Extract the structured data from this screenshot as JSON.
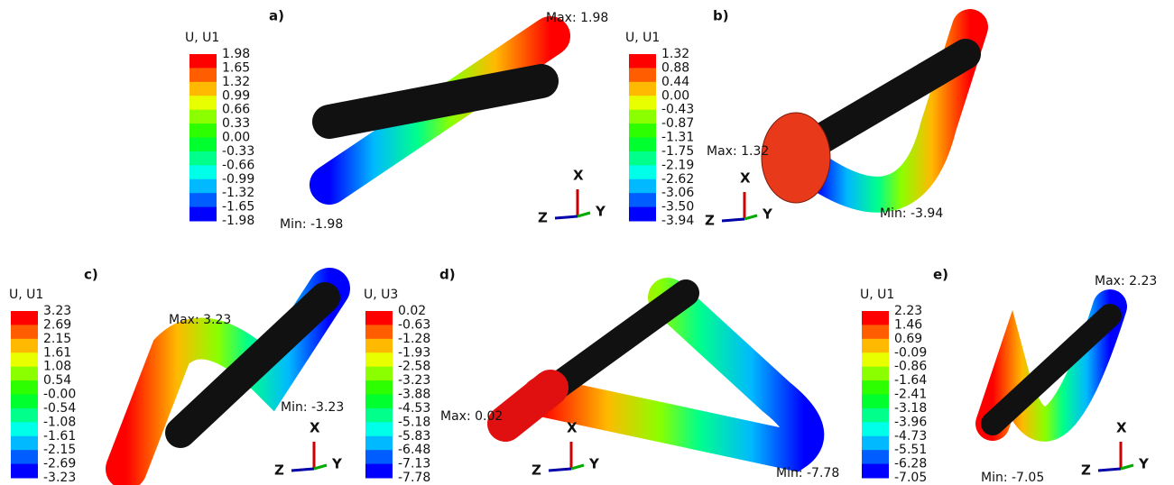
{
  "panels": [
    {
      "label": "a)",
      "legend_title": "U, U1",
      "legend_values": [
        "1.98",
        "1.65",
        "1.32",
        "0.99",
        "0.66",
        "0.33",
        "0.00",
        "-0.33",
        "-0.66",
        "-0.99",
        "-1.32",
        "-1.65",
        "-1.98"
      ],
      "max_label": "Max: 1.98",
      "min_label": "Min: -1.98",
      "axes": [
        "X",
        "Z",
        "Y"
      ]
    },
    {
      "label": "b)",
      "legend_title": "U, U1",
      "legend_values": [
        "1.32",
        "0.88",
        "0.44",
        "0.00",
        "-0.43",
        "-0.87",
        "-1.31",
        "-1.75",
        "-2.19",
        "-2.62",
        "-3.06",
        "-3.50",
        "-3.94"
      ],
      "max_label": "Max: 1.32",
      "min_label": "Min: -3.94",
      "axes": [
        "X",
        "Z",
        "Y"
      ]
    },
    {
      "label": "c)",
      "legend_title": "U, U1",
      "legend_values": [
        "3.23",
        "2.69",
        "2.15",
        "1.61",
        "1.08",
        "0.54",
        "-0.00",
        "-0.54",
        "-1.08",
        "-1.61",
        "-2.15",
        "-2.69",
        "-3.23"
      ],
      "max_label": "Max: 3.23",
      "min_label": "Min: -3.23",
      "axes": [
        "X",
        "Z",
        "Y"
      ]
    },
    {
      "label": "d)",
      "legend_title": "U, U3",
      "legend_values": [
        "0.02",
        "-0.63",
        "-1.28",
        "-1.93",
        "-2.58",
        "-3.23",
        "-3.88",
        "-4.53",
        "-5.18",
        "-5.83",
        "-6.48",
        "-7.13",
        "-7.78"
      ],
      "max_label": "Max: 0.02",
      "min_label": "Min: -7.78",
      "axes": [
        "X",
        "Z",
        "Y"
      ]
    },
    {
      "label": "e)",
      "legend_title": "U, U1",
      "legend_values": [
        "2.23",
        "1.46",
        "0.69",
        "-0.09",
        "-0.86",
        "-1.64",
        "-2.41",
        "-3.18",
        "-3.96",
        "-4.73",
        "-5.51",
        "-6.28",
        "-7.05"
      ],
      "max_label": "Max: 2.23",
      "min_label": "Min: -7.05",
      "axes": [
        "X",
        "Z",
        "Y"
      ]
    }
  ]
}
